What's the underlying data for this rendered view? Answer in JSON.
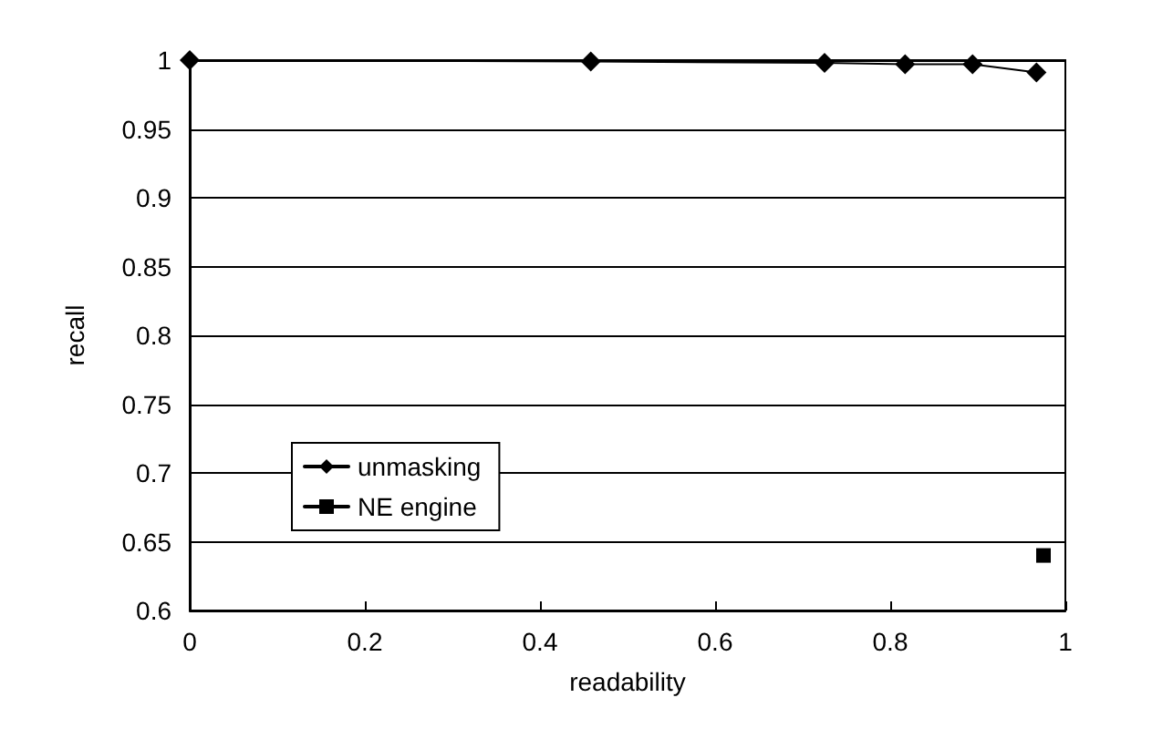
{
  "chart_data": {
    "type": "line",
    "xlabel": "readability",
    "ylabel": "recall",
    "xlim": [
      0,
      1
    ],
    "xticks": [
      0,
      0.2,
      0.4,
      0.6,
      0.8,
      1
    ],
    "ylim": [
      0.6,
      1
    ],
    "yticks": [
      0.6,
      0.65,
      0.7,
      0.75,
      0.8,
      0.85,
      0.9,
      0.95,
      1
    ],
    "grid": "y",
    "legend": "bottom left",
    "series": [
      {
        "name": "unmasking",
        "color": "#000000",
        "marker": "diamond",
        "x": [
          0,
          0.458,
          0.725,
          0.817,
          0.894,
          0.967
        ],
        "values": [
          1,
          0.999,
          0.998,
          0.997,
          0.997,
          0.991
        ]
      },
      {
        "name": "NE engine",
        "color": "#000000",
        "marker": "square",
        "x": [
          0.975
        ],
        "values": [
          0.64
        ]
      }
    ]
  }
}
